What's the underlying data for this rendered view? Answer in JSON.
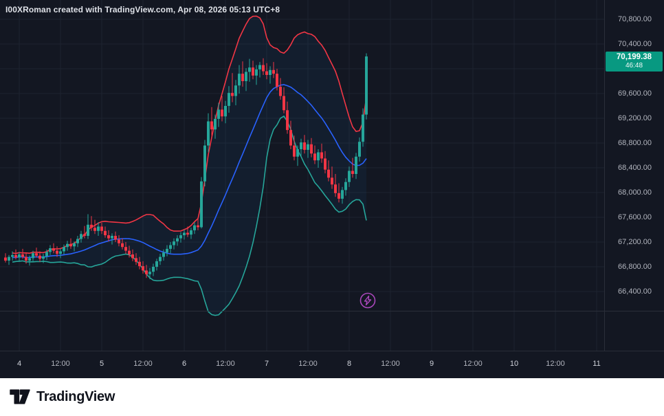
{
  "attribution": "I00XRoman created with TradingView.com, Apr 08, 2026 05:13 UTC+8",
  "footer": {
    "brand": "TradingView"
  },
  "icons": {
    "lightning_marker": "lightning-bolt-in-circle",
    "logo_mark": "tradingview-17-mark"
  },
  "colors": {
    "background": "#131722",
    "grid": "#1e2330",
    "axis_text": "#b2b5be",
    "border": "#2a2e39",
    "up": "#26a69a",
    "down": "#f23645",
    "bb_upper": "#f23645",
    "bb_basis": "#2962ff",
    "bb_lower": "#26a69a",
    "band_fill": "rgba(33,150,243,0.06)",
    "badge_bg": "#089981",
    "lightning": "#ab47bc"
  },
  "price_badge": {
    "price": "70,199.38",
    "countdown": "46:48",
    "value": 70199.38
  },
  "price_axis": {
    "ticks": [
      {
        "label": "70,800.00",
        "value": 70800
      },
      {
        "label": "70,400.00",
        "value": 70400
      },
      {
        "label": "69,600.00",
        "value": 69600
      },
      {
        "label": "69,200.00",
        "value": 69200
      },
      {
        "label": "68,800.00",
        "value": 68800
      },
      {
        "label": "68,400.00",
        "value": 68400
      },
      {
        "label": "68,000.00",
        "value": 68000
      },
      {
        "label": "67,600.00",
        "value": 67600
      },
      {
        "label": "67,200.00",
        "value": 67200
      },
      {
        "label": "66,800.00",
        "value": 66800
      },
      {
        "label": "66,400.00",
        "value": 66400
      }
    ]
  },
  "time_axis": {
    "ticks": [
      {
        "label": "4",
        "index": 4
      },
      {
        "label": "12:00",
        "index": 16
      },
      {
        "label": "5",
        "index": 28
      },
      {
        "label": "12:00",
        "index": 40
      },
      {
        "label": "6",
        "index": 52
      },
      {
        "label": "12:00",
        "index": 64
      },
      {
        "label": "7",
        "index": 76
      },
      {
        "label": "12:00",
        "index": 88
      },
      {
        "label": "8",
        "index": 100
      },
      {
        "label": "12:00",
        "index": 112
      },
      {
        "label": "9",
        "index": 124
      },
      {
        "label": "12:00",
        "index": 136
      },
      {
        "label": "10",
        "index": 148
      },
      {
        "label": "12:00",
        "index": 160
      },
      {
        "label": "11",
        "index": 172
      }
    ]
  },
  "chart_data": {
    "type": "candlestick",
    "title": "",
    "last_price": 70199.38,
    "y_axis": {
      "min": 66400,
      "max": 70800,
      "step": 400
    },
    "indicator": {
      "name": "Bollinger Bands",
      "length": 20,
      "mult": 2
    },
    "candles_ohlc": [
      [
        66950,
        67020,
        66870,
        66900
      ],
      [
        66900,
        66990,
        66830,
        66960
      ],
      [
        66960,
        67050,
        66900,
        66990
      ],
      [
        66990,
        67080,
        66920,
        66950
      ],
      [
        66950,
        67040,
        66880,
        67000
      ],
      [
        67000,
        67090,
        66930,
        66960
      ],
      [
        66960,
        67030,
        66850,
        66900
      ],
      [
        66900,
        66980,
        66820,
        66940
      ],
      [
        66940,
        67060,
        66890,
        67020
      ],
      [
        67020,
        67110,
        66950,
        66980
      ],
      [
        66980,
        67050,
        66880,
        66930
      ],
      [
        66930,
        67010,
        66860,
        66970
      ],
      [
        66970,
        67080,
        66910,
        67040
      ],
      [
        67040,
        67150,
        66990,
        67100
      ],
      [
        67100,
        67180,
        67020,
        67060
      ],
      [
        67060,
        67130,
        66960,
        67010
      ],
      [
        67010,
        67090,
        66940,
        67050
      ],
      [
        67050,
        67160,
        67000,
        67120
      ],
      [
        67120,
        67220,
        67060,
        67170
      ],
      [
        67170,
        67260,
        67090,
        67130
      ],
      [
        67130,
        67210,
        67050,
        67180
      ],
      [
        67180,
        67300,
        67120,
        67250
      ],
      [
        67250,
        67380,
        67190,
        67330
      ],
      [
        67330,
        67460,
        67260,
        67300
      ],
      [
        67300,
        67650,
        67250,
        67480
      ],
      [
        67480,
        67620,
        67380,
        67430
      ],
      [
        67430,
        67560,
        67330,
        67380
      ],
      [
        67380,
        67520,
        67300,
        67450
      ],
      [
        67450,
        67510,
        67330,
        67380
      ],
      [
        67380,
        67450,
        67270,
        67310
      ],
      [
        67310,
        67390,
        67210,
        67260
      ],
      [
        67260,
        67340,
        67160,
        67300
      ],
      [
        67300,
        67370,
        67200,
        67240
      ],
      [
        67240,
        67310,
        67130,
        67180
      ],
      [
        67180,
        67260,
        67080,
        67120
      ],
      [
        67120,
        67200,
        67010,
        67060
      ],
      [
        67060,
        67140,
        66950,
        67000
      ],
      [
        67000,
        67080,
        66890,
        66940
      ],
      [
        66940,
        67020,
        66830,
        66880
      ],
      [
        66880,
        66960,
        66760,
        66810
      ],
      [
        66810,
        66890,
        66690,
        66740
      ],
      [
        66740,
        66830,
        66620,
        66680
      ],
      [
        66680,
        66780,
        66600,
        66720
      ],
      [
        66720,
        66850,
        66650,
        66800
      ],
      [
        66800,
        66930,
        66740,
        66890
      ],
      [
        66890,
        67010,
        66830,
        66960
      ],
      [
        66960,
        67080,
        66900,
        67030
      ],
      [
        67030,
        67150,
        66970,
        67090
      ],
      [
        67090,
        67200,
        67020,
        67150
      ],
      [
        67150,
        67260,
        67080,
        67210
      ],
      [
        67210,
        67310,
        67140,
        67260
      ],
      [
        67260,
        67360,
        67190,
        67310
      ],
      [
        67310,
        67400,
        67240,
        67350
      ],
      [
        67350,
        67450,
        67280,
        67320
      ],
      [
        67320,
        67430,
        67250,
        67390
      ],
      [
        67390,
        67520,
        67330,
        67470
      ],
      [
        67470,
        67580,
        67390,
        67440
      ],
      [
        67440,
        68250,
        67420,
        68180
      ],
      [
        68180,
        68850,
        68100,
        68760
      ],
      [
        68760,
        69280,
        68650,
        69150
      ],
      [
        69150,
        69380,
        68920,
        69020
      ],
      [
        69020,
        69260,
        68870,
        69190
      ],
      [
        69190,
        69450,
        69060,
        69340
      ],
      [
        69340,
        69560,
        69150,
        69230
      ],
      [
        69230,
        69480,
        69120,
        69400
      ],
      [
        69400,
        69720,
        69290,
        69610
      ],
      [
        69610,
        69930,
        69460,
        69560
      ],
      [
        69560,
        69820,
        69410,
        69730
      ],
      [
        69730,
        70060,
        69600,
        69920
      ],
      [
        69920,
        70120,
        69710,
        69800
      ],
      [
        69800,
        70010,
        69640,
        69950
      ],
      [
        69950,
        70160,
        69790,
        70020
      ],
      [
        70020,
        70130,
        69830,
        69890
      ],
      [
        69890,
        70060,
        69740,
        69990
      ],
      [
        69990,
        70110,
        69860,
        70060
      ],
      [
        70060,
        70170,
        69900,
        69960
      ],
      [
        69960,
        70090,
        69830,
        69900
      ],
      [
        69900,
        70040,
        69760,
        69980
      ],
      [
        69980,
        70110,
        69850,
        69920
      ],
      [
        69920,
        70000,
        69650,
        69710
      ],
      [
        69710,
        69850,
        69500,
        69560
      ],
      [
        69560,
        69700,
        69280,
        69330
      ],
      [
        69330,
        69470,
        68950,
        69010
      ],
      [
        69010,
        69160,
        68700,
        68760
      ],
      [
        68760,
        68920,
        68520,
        68580
      ],
      [
        68580,
        68760,
        68430,
        68700
      ],
      [
        68700,
        68870,
        68590,
        68810
      ],
      [
        68810,
        68930,
        68630,
        68690
      ],
      [
        68690,
        68850,
        68560,
        68780
      ],
      [
        68780,
        68880,
        68570,
        68630
      ],
      [
        68630,
        68760,
        68460,
        68520
      ],
      [
        68520,
        68700,
        68400,
        68650
      ],
      [
        68650,
        68790,
        68480,
        68550
      ],
      [
        68550,
        68670,
        68310,
        68370
      ],
      [
        68370,
        68520,
        68180,
        68240
      ],
      [
        68240,
        68420,
        68060,
        68130
      ],
      [
        68130,
        68300,
        67930,
        67990
      ],
      [
        67990,
        68150,
        67840,
        67900
      ],
      [
        67900,
        68090,
        67820,
        68040
      ],
      [
        68040,
        68230,
        67950,
        68170
      ],
      [
        68170,
        68420,
        68090,
        68350
      ],
      [
        68350,
        68560,
        68240,
        68300
      ],
      [
        68300,
        68640,
        68220,
        68580
      ],
      [
        68580,
        68890,
        68500,
        68820
      ],
      [
        68820,
        69360,
        68740,
        69260
      ],
      [
        69260,
        70250,
        69180,
        70199.38
      ]
    ]
  }
}
